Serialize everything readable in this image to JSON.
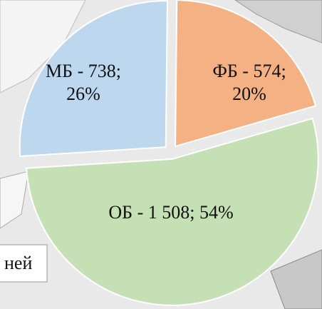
{
  "chart_data": {
    "type": "pie",
    "categories": [
      "МБ",
      "ФБ",
      "ОБ"
    ],
    "values": [
      738,
      574,
      1508
    ],
    "percents": [
      26,
      20,
      54
    ],
    "value_labels": [
      [
        "МБ - 738;",
        "26%"
      ],
      [
        "ФБ - 574;",
        "20%"
      ],
      [
        "ОБ -  1 508; 54%"
      ]
    ],
    "colors": [
      "#bdd7ee",
      "#f4b183",
      "#c5e0b4"
    ],
    "start_angle": 266.4,
    "note": "ней"
  }
}
